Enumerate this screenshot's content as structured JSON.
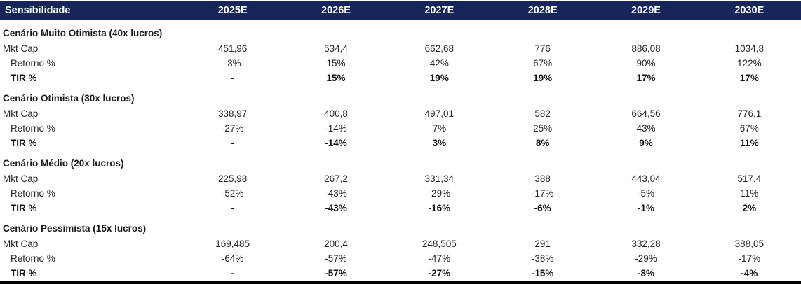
{
  "colors": {
    "header_bg": "#16265a",
    "header_text": "#ffffff",
    "bottom_rule": "#000000"
  },
  "header": {
    "label": "Sensibilidade",
    "years": [
      "2025E",
      "2026E",
      "2027E",
      "2028E",
      "2029E",
      "2030E"
    ]
  },
  "row_labels": {
    "mkt_cap": "Mkt Cap",
    "retorno": "Retorno %",
    "tir": "TIR %"
  },
  "sections": [
    {
      "title": "Cenário Muito Otimista (40x lucros)",
      "mkt_cap": [
        "451,96",
        "534,4",
        "662,68",
        "776",
        "886,08",
        "1034,8"
      ],
      "retorno": [
        "-3%",
        "15%",
        "42%",
        "67%",
        "90%",
        "122%"
      ],
      "tir": [
        "-",
        "15%",
        "19%",
        "19%",
        "17%",
        "17%"
      ]
    },
    {
      "title": "Cenário Otimista (30x lucros)",
      "mkt_cap": [
        "338,97",
        "400,8",
        "497,01",
        "582",
        "664,56",
        "776,1"
      ],
      "retorno": [
        "-27%",
        "-14%",
        "7%",
        "25%",
        "43%",
        "67%"
      ],
      "tir": [
        "-",
        "-14%",
        "3%",
        "8%",
        "9%",
        "11%"
      ]
    },
    {
      "title": "Cenário Médio (20x lucros)",
      "mkt_cap": [
        "225,98",
        "267,2",
        "331,34",
        "388",
        "443,04",
        "517,4"
      ],
      "retorno": [
        "-52%",
        "-43%",
        "-29%",
        "-17%",
        "-5%",
        "11%"
      ],
      "tir": [
        "-",
        "-43%",
        "-16%",
        "-6%",
        "-1%",
        "2%"
      ]
    },
    {
      "title": "Cenário Pessimista (15x lucros)",
      "mkt_cap": [
        "169,485",
        "200,4",
        "248,505",
        "291",
        "332,28",
        "388,05"
      ],
      "retorno": [
        "-64%",
        "-57%",
        "-47%",
        "-38%",
        "-29%",
        "-17%"
      ],
      "tir": [
        "-",
        "-57%",
        "-27%",
        "-15%",
        "-8%",
        "-4%"
      ]
    }
  ]
}
